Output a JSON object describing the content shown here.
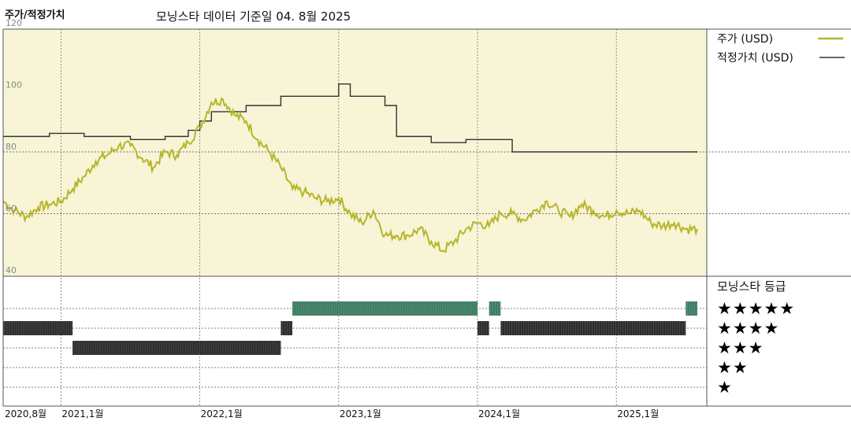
{
  "header": {
    "title": "주가/적정가치",
    "subtitle": "모닝스타 데이터 기준일 04. 8월 2025"
  },
  "legend": {
    "price_label": "주가 (USD)",
    "fair_value_label": "적정가치 (USD)",
    "rating_title": "모닝스타 등급",
    "star_rows": [
      "★★★★★",
      "★★★★",
      "★★★",
      "★★",
      "★"
    ]
  },
  "colors": {
    "price_line": "#b5b62a",
    "fair_value_line": "#333333",
    "upper_background": "#f8f4d6",
    "five_star_band": "#3d7d63",
    "four_star_band": "#2c2c2c",
    "three_star_band": "#2c2c2c"
  },
  "chart_data": {
    "type": "line",
    "title": "주가/적정가치",
    "ylim": [
      40,
      120
    ],
    "yticks": [
      40,
      60,
      80,
      100,
      120
    ],
    "x_range": [
      "2020-08",
      "2025-08"
    ],
    "xtick_labels": [
      {
        "label": "2020,8월",
        "date": "2020-08"
      },
      {
        "label": "2021,1월",
        "date": "2021-01"
      },
      {
        "label": "2022,1월",
        "date": "2022-01"
      },
      {
        "label": "2023,1월",
        "date": "2023-01"
      },
      {
        "label": "2024,1월",
        "date": "2024-01"
      },
      {
        "label": "2025,1월",
        "date": "2025-01"
      }
    ],
    "series": [
      {
        "name": "주가 (USD)",
        "color": "#b5b62a",
        "points": [
          [
            "2020-08",
            64
          ],
          [
            "2020-09",
            61
          ],
          [
            "2020-10",
            59
          ],
          [
            "2020-11",
            62
          ],
          [
            "2020-12",
            63
          ],
          [
            "2021-01",
            64
          ],
          [
            "2021-02",
            68
          ],
          [
            "2021-03",
            72
          ],
          [
            "2021-04",
            77
          ],
          [
            "2021-05",
            79
          ],
          [
            "2021-06",
            82
          ],
          [
            "2021-07",
            82
          ],
          [
            "2021-08",
            78
          ],
          [
            "2021-09",
            75
          ],
          [
            "2021-10",
            80
          ],
          [
            "2021-11",
            79
          ],
          [
            "2021-12",
            83
          ],
          [
            "2022-01",
            88
          ],
          [
            "2022-02",
            96
          ],
          [
            "2022-03",
            97
          ],
          [
            "2022-04",
            92
          ],
          [
            "2022-05",
            90
          ],
          [
            "2022-06",
            84
          ],
          [
            "2022-07",
            80
          ],
          [
            "2022-08",
            75
          ],
          [
            "2022-09",
            68
          ],
          [
            "2022-10",
            67
          ],
          [
            "2022-11",
            65
          ],
          [
            "2022-12",
            64
          ],
          [
            "2023-01",
            65
          ],
          [
            "2023-02",
            60
          ],
          [
            "2023-03",
            57
          ],
          [
            "2023-04",
            61
          ],
          [
            "2023-05",
            53
          ],
          [
            "2023-06",
            53
          ],
          [
            "2023-07",
            53
          ],
          [
            "2023-08",
            55
          ],
          [
            "2023-09",
            51
          ],
          [
            "2023-10",
            48
          ],
          [
            "2023-11",
            51
          ],
          [
            "2023-12",
            55
          ],
          [
            "2024-01",
            57
          ],
          [
            "2024-02",
            56
          ],
          [
            "2024-03",
            60
          ],
          [
            "2024-04",
            60
          ],
          [
            "2024-05",
            58
          ],
          [
            "2024-06",
            61
          ],
          [
            "2024-07",
            64
          ],
          [
            "2024-08",
            61
          ],
          [
            "2024-09",
            59
          ],
          [
            "2024-10",
            63
          ],
          [
            "2024-11",
            61
          ],
          [
            "2024-12",
            59
          ],
          [
            "2025-01",
            61
          ],
          [
            "2025-02",
            60
          ],
          [
            "2025-03",
            61
          ],
          [
            "2025-04",
            57
          ],
          [
            "2025-05",
            56
          ],
          [
            "2025-06",
            57
          ],
          [
            "2025-07",
            55
          ],
          [
            "2025-08",
            55
          ]
        ]
      },
      {
        "name": "적정가치 (USD)",
        "color": "#333333",
        "steps": [
          [
            "2020-08",
            85
          ],
          [
            "2020-12",
            86
          ],
          [
            "2021-03",
            85
          ],
          [
            "2021-07",
            84
          ],
          [
            "2021-10",
            85
          ],
          [
            "2021-12",
            87
          ],
          [
            "2022-01",
            90
          ],
          [
            "2022-02",
            93
          ],
          [
            "2022-05",
            95
          ],
          [
            "2022-08",
            98
          ],
          [
            "2023-01",
            102
          ],
          [
            "2023-02",
            98
          ],
          [
            "2023-05",
            95
          ],
          [
            "2023-06",
            85
          ],
          [
            "2023-09",
            83
          ],
          [
            "2023-12",
            84
          ],
          [
            "2024-03",
            84
          ],
          [
            "2024-04",
            80
          ],
          [
            "2025-08",
            80
          ]
        ]
      }
    ],
    "rating_history": [
      {
        "start": "2020-08",
        "end": "2021-02",
        "stars": 4
      },
      {
        "start": "2021-02",
        "end": "2022-08",
        "stars": 3
      },
      {
        "start": "2022-08",
        "end": "2022-09",
        "stars": 4
      },
      {
        "start": "2022-09",
        "end": "2024-01",
        "stars": 5
      },
      {
        "start": "2024-01",
        "end": "2024-02",
        "stars": 4
      },
      {
        "start": "2024-02",
        "end": "2024-03",
        "stars": 5
      },
      {
        "start": "2024-03",
        "end": "2025-07",
        "stars": 4
      },
      {
        "start": "2025-07",
        "end": "2025-08",
        "stars": 5
      }
    ]
  }
}
